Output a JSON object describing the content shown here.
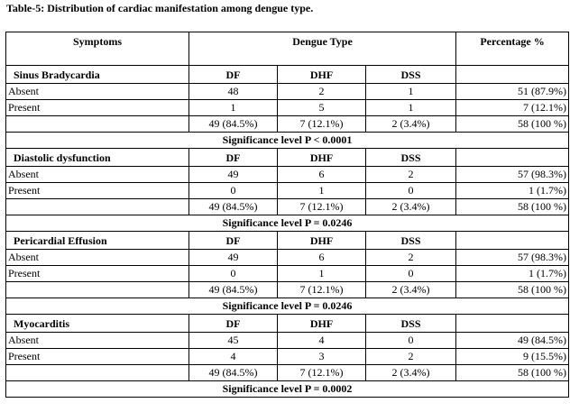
{
  "caption": "Table-5: Distribution of cardiac manifestation among dengue type.",
  "header": {
    "symptoms": "Symptoms",
    "dengue_type": "Dengue Type",
    "percentage": "Percentage %"
  },
  "groups": [
    {
      "name": "Sinus Bradycardia",
      "cols": [
        "DF",
        "DHF",
        "DSS"
      ],
      "rows": [
        {
          "label": "Absent",
          "df": "48",
          "dhf": "2",
          "dss": "1",
          "pct": "51 (87.9%)"
        },
        {
          "label": "Present",
          "df": "1",
          "dhf": "5",
          "dss": "1",
          "pct": "7 (12.1%)"
        }
      ],
      "total": {
        "df": "49 (84.5%)",
        "dhf": "7 (12.1%)",
        "dss": "2 (3.4%)",
        "pct": "58 (100 %)"
      },
      "significance": "Significance level P < 0.0001"
    },
    {
      "name": "Diastolic dysfunction",
      "cols": [
        "DF",
        "DHF",
        "DSS"
      ],
      "rows": [
        {
          "label": "Absent",
          "df": "49",
          "dhf": "6",
          "dss": "2",
          "pct": "57 (98.3%)"
        },
        {
          "label": "Present",
          "df": "0",
          "dhf": "1",
          "dss": "0",
          "pct": "1 (1.7%)"
        }
      ],
      "total": {
        "df": "49 (84.5%)",
        "dhf": "7 (12.1%)",
        "dss": "2 (3.4%)",
        "pct": "58 (100 %)"
      },
      "significance": "Significance level P = 0.0246"
    },
    {
      "name": "Pericardial Effusion",
      "cols": [
        "DF",
        "DHF",
        "DSS"
      ],
      "rows": [
        {
          "label": "Absent",
          "df": "49",
          "dhf": "6",
          "dss": "2",
          "pct": "57 (98.3%)"
        },
        {
          "label": "Present",
          "df": "0",
          "dhf": "1",
          "dss": "0",
          "pct": "1 (1.7%)"
        }
      ],
      "total": {
        "df": "49 (84.5%)",
        "dhf": "7 (12.1%)",
        "dss": "2 (3.4%)",
        "pct": "58 (100 %)"
      },
      "significance": "Significance level P = 0.0246"
    },
    {
      "name": "Myocarditis",
      "cols": [
        "DF",
        "DHF",
        "DSS"
      ],
      "rows": [
        {
          "label": "Absent",
          "df": "45",
          "dhf": "4",
          "dss": "0",
          "pct": "49 (84.5%)"
        },
        {
          "label": "Present",
          "df": "4",
          "dhf": "3",
          "dss": "2",
          "pct": "9 (15.5%)"
        }
      ],
      "total": {
        "df": "49 (84.5%)",
        "dhf": "7 (12.1%)",
        "dss": "2 (3.4%)",
        "pct": "58 (100 %)"
      },
      "significance": "Significance level P = 0.0002"
    }
  ]
}
